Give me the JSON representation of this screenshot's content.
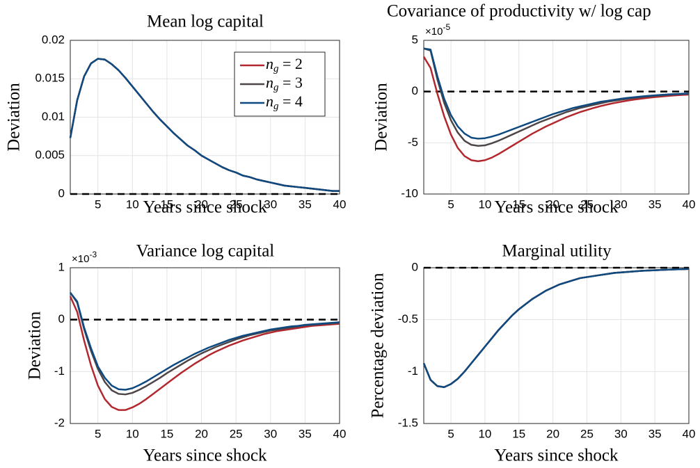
{
  "chart_data": [
    {
      "type": "line",
      "title": "Mean log capital",
      "xlabel": "Years since shock",
      "ylabel": "Deviation",
      "x": [
        1,
        2,
        3,
        4,
        5,
        6,
        7,
        8,
        9,
        10,
        11,
        12,
        13,
        14,
        15,
        16,
        17,
        18,
        19,
        20,
        21,
        22,
        23,
        24,
        25,
        26,
        27,
        28,
        29,
        30,
        31,
        32,
        33,
        34,
        35,
        36,
        37,
        38,
        39,
        40
      ],
      "xlim": [
        1,
        40
      ],
      "xticks": [
        5,
        10,
        15,
        20,
        25,
        30,
        35,
        40
      ],
      "ylim": [
        0,
        0.02
      ],
      "yticks": [
        0,
        0.005,
        0.01,
        0.015,
        0.02
      ],
      "grid": true,
      "reference_line": 0,
      "legend": "northeast",
      "series": [
        {
          "name": "n_g = 2",
          "color": "#b2282e",
          "values": [
            0.0073,
            0.0122,
            0.0153,
            0.017,
            0.0176,
            0.0175,
            0.0169,
            0.0161,
            0.0151,
            0.014,
            0.0129,
            0.0118,
            0.0107,
            0.0097,
            0.0088,
            0.0079,
            0.0071,
            0.0063,
            0.0057,
            0.005,
            0.0045,
            0.004,
            0.0035,
            0.0031,
            0.0028,
            0.0024,
            0.0022,
            0.0019,
            0.0017,
            0.0015,
            0.0013,
            0.0011,
            0.001,
            0.0009,
            0.0008,
            0.0007,
            0.0006,
            0.0005,
            0.0004,
            0.0004
          ]
        },
        {
          "name": "n_g = 3",
          "color": "#4d4548",
          "values": [
            0.0073,
            0.0122,
            0.0153,
            0.017,
            0.0176,
            0.0175,
            0.0169,
            0.0161,
            0.0151,
            0.014,
            0.0129,
            0.0118,
            0.0107,
            0.0097,
            0.0088,
            0.0079,
            0.0071,
            0.0063,
            0.0057,
            0.005,
            0.0045,
            0.004,
            0.0035,
            0.0031,
            0.0028,
            0.0024,
            0.0022,
            0.0019,
            0.0017,
            0.0015,
            0.0013,
            0.0011,
            0.001,
            0.0009,
            0.0008,
            0.0007,
            0.0006,
            0.0005,
            0.0004,
            0.0004
          ]
        },
        {
          "name": "n_g = 4",
          "color": "#0e4a80",
          "values": [
            0.0073,
            0.0122,
            0.0153,
            0.017,
            0.0176,
            0.0175,
            0.0169,
            0.0161,
            0.0151,
            0.014,
            0.0129,
            0.0118,
            0.0107,
            0.0097,
            0.0088,
            0.0079,
            0.0071,
            0.0063,
            0.0057,
            0.005,
            0.0045,
            0.004,
            0.0035,
            0.0031,
            0.0028,
            0.0024,
            0.0022,
            0.0019,
            0.0017,
            0.0015,
            0.0013,
            0.0011,
            0.001,
            0.0009,
            0.0008,
            0.0007,
            0.0006,
            0.0005,
            0.0004,
            0.0004
          ]
        }
      ]
    },
    {
      "type": "line",
      "title": "Covariance of productivity w/ log cap",
      "xlabel": "Years since shock",
      "ylabel": "Deviation",
      "y_multiplier": {
        "base": "×10",
        "exponent": "-5"
      },
      "x": [
        1,
        2,
        3,
        4,
        5,
        6,
        7,
        8,
        9,
        10,
        11,
        12,
        13,
        14,
        15,
        16,
        17,
        18,
        19,
        20,
        21,
        22,
        23,
        24,
        25,
        26,
        27,
        28,
        29,
        30,
        31,
        32,
        33,
        34,
        35,
        36,
        37,
        38,
        39,
        40
      ],
      "xlim": [
        1,
        40
      ],
      "xticks": [
        5,
        10,
        15,
        20,
        25,
        30,
        35,
        40
      ],
      "ylim": [
        -10,
        5
      ],
      "yticks": [
        -10,
        -5,
        0,
        5
      ],
      "grid": true,
      "reference_line": 0,
      "series": [
        {
          "color": "#b2282e",
          "values": [
            3.4,
            2.3,
            -0.2,
            -2.4,
            -4.2,
            -5.5,
            -6.3,
            -6.7,
            -6.8,
            -6.7,
            -6.45,
            -6.1,
            -5.7,
            -5.3,
            -4.9,
            -4.5,
            -4.1,
            -3.75,
            -3.4,
            -3.1,
            -2.8,
            -2.5,
            -2.25,
            -2.0,
            -1.8,
            -1.6,
            -1.42,
            -1.26,
            -1.12,
            -1.0,
            -0.88,
            -0.78,
            -0.69,
            -0.61,
            -0.54,
            -0.48,
            -0.42,
            -0.37,
            -0.33,
            -0.29
          ]
        },
        {
          "color": "#4d4548",
          "values": [
            4.2,
            4.0,
            1.2,
            -1.1,
            -2.8,
            -4.0,
            -4.8,
            -5.2,
            -5.3,
            -5.25,
            -5.05,
            -4.8,
            -4.5,
            -4.2,
            -3.9,
            -3.6,
            -3.3,
            -3.0,
            -2.75,
            -2.5,
            -2.25,
            -2.0,
            -1.8,
            -1.6,
            -1.45,
            -1.3,
            -1.15,
            -1.0,
            -0.9,
            -0.8,
            -0.7,
            -0.62,
            -0.55,
            -0.48,
            -0.42,
            -0.37,
            -0.32,
            -0.28,
            -0.24,
            -0.21
          ]
        },
        {
          "color": "#0e4a80",
          "values": [
            4.2,
            4.1,
            1.5,
            -0.7,
            -2.3,
            -3.4,
            -4.1,
            -4.5,
            -4.6,
            -4.55,
            -4.4,
            -4.2,
            -3.95,
            -3.7,
            -3.45,
            -3.2,
            -2.95,
            -2.7,
            -2.45,
            -2.2,
            -2.0,
            -1.8,
            -1.6,
            -1.45,
            -1.3,
            -1.15,
            -1.0,
            -0.9,
            -0.8,
            -0.7,
            -0.62,
            -0.55,
            -0.48,
            -0.42,
            -0.37,
            -0.32,
            -0.28,
            -0.24,
            -0.21,
            -0.18
          ]
        }
      ]
    },
    {
      "type": "line",
      "title": "Variance log capital",
      "xlabel": "Years since shock",
      "ylabel": "Deviation",
      "y_multiplier": {
        "base": "×10",
        "exponent": "-3"
      },
      "x": [
        1,
        2,
        3,
        4,
        5,
        6,
        7,
        8,
        9,
        10,
        11,
        12,
        13,
        14,
        15,
        16,
        17,
        18,
        19,
        20,
        21,
        22,
        23,
        24,
        25,
        26,
        27,
        28,
        29,
        30,
        31,
        32,
        33,
        34,
        35,
        36,
        37,
        38,
        39,
        40
      ],
      "xlim": [
        1,
        40
      ],
      "xticks": [
        5,
        10,
        15,
        20,
        25,
        30,
        35,
        40
      ],
      "ylim": [
        -2,
        1
      ],
      "yticks": [
        -2,
        -1,
        0,
        1
      ],
      "grid": true,
      "reference_line": 0,
      "series": [
        {
          "color": "#b2282e",
          "values": [
            0.45,
            0.15,
            -0.4,
            -0.88,
            -1.27,
            -1.53,
            -1.68,
            -1.74,
            -1.74,
            -1.69,
            -1.62,
            -1.53,
            -1.43,
            -1.33,
            -1.23,
            -1.13,
            -1.03,
            -0.94,
            -0.85,
            -0.77,
            -0.69,
            -0.62,
            -0.56,
            -0.5,
            -0.45,
            -0.4,
            -0.36,
            -0.32,
            -0.28,
            -0.25,
            -0.22,
            -0.2,
            -0.18,
            -0.16,
            -0.14,
            -0.12,
            -0.11,
            -0.1,
            -0.09,
            -0.08
          ]
        },
        {
          "color": "#4d4548",
          "values": [
            0.52,
            0.33,
            -0.18,
            -0.6,
            -0.95,
            -1.2,
            -1.36,
            -1.43,
            -1.44,
            -1.41,
            -1.35,
            -1.28,
            -1.2,
            -1.12,
            -1.03,
            -0.95,
            -0.87,
            -0.79,
            -0.72,
            -0.65,
            -0.59,
            -0.53,
            -0.48,
            -0.43,
            -0.38,
            -0.34,
            -0.3,
            -0.27,
            -0.24,
            -0.21,
            -0.19,
            -0.17,
            -0.15,
            -0.13,
            -0.11,
            -0.1,
            -0.09,
            -0.08,
            -0.07,
            -0.06
          ]
        },
        {
          "color": "#0e4a80",
          "values": [
            0.52,
            0.35,
            -0.15,
            -0.55,
            -0.9,
            -1.12,
            -1.27,
            -1.34,
            -1.35,
            -1.32,
            -1.26,
            -1.19,
            -1.11,
            -1.03,
            -0.95,
            -0.87,
            -0.8,
            -0.73,
            -0.66,
            -0.6,
            -0.54,
            -0.49,
            -0.44,
            -0.39,
            -0.35,
            -0.31,
            -0.28,
            -0.25,
            -0.22,
            -0.19,
            -0.17,
            -0.15,
            -0.13,
            -0.12,
            -0.1,
            -0.09,
            -0.08,
            -0.07,
            -0.06,
            -0.05
          ]
        }
      ]
    },
    {
      "type": "line",
      "title": "Marginal utility",
      "xlabel": "Years since shock",
      "ylabel": "Percentage deviation",
      "x": [
        1,
        2,
        3,
        4,
        5,
        6,
        7,
        8,
        9,
        10,
        11,
        12,
        13,
        14,
        15,
        16,
        17,
        18,
        19,
        20,
        21,
        22,
        23,
        24,
        25,
        26,
        27,
        28,
        29,
        30,
        31,
        32,
        33,
        34,
        35,
        36,
        37,
        38,
        39,
        40
      ],
      "xlim": [
        1,
        40
      ],
      "xticks": [
        5,
        10,
        15,
        20,
        25,
        30,
        35,
        40
      ],
      "ylim": [
        -1.5,
        0
      ],
      "yticks": [
        -1.5,
        -1,
        -0.5,
        0
      ],
      "grid": true,
      "reference_line": 0,
      "series": [
        {
          "color": "#b2282e",
          "values": [
            -0.92,
            -1.08,
            -1.14,
            -1.15,
            -1.12,
            -1.07,
            -1.0,
            -0.92,
            -0.84,
            -0.76,
            -0.68,
            -0.6,
            -0.53,
            -0.46,
            -0.4,
            -0.35,
            -0.3,
            -0.26,
            -0.22,
            -0.19,
            -0.16,
            -0.14,
            -0.12,
            -0.1,
            -0.09,
            -0.08,
            -0.07,
            -0.06,
            -0.05,
            -0.045,
            -0.04,
            -0.035,
            -0.03,
            -0.027,
            -0.024,
            -0.021,
            -0.018,
            -0.016,
            -0.014,
            -0.012
          ]
        },
        {
          "color": "#4d4548",
          "values": [
            -0.92,
            -1.08,
            -1.14,
            -1.15,
            -1.12,
            -1.07,
            -1.0,
            -0.92,
            -0.84,
            -0.76,
            -0.68,
            -0.6,
            -0.53,
            -0.46,
            -0.4,
            -0.35,
            -0.3,
            -0.26,
            -0.22,
            -0.19,
            -0.16,
            -0.14,
            -0.12,
            -0.1,
            -0.09,
            -0.08,
            -0.07,
            -0.06,
            -0.05,
            -0.045,
            -0.04,
            -0.035,
            -0.03,
            -0.027,
            -0.024,
            -0.021,
            -0.018,
            -0.016,
            -0.014,
            -0.012
          ]
        },
        {
          "color": "#0e4a80",
          "values": [
            -0.92,
            -1.08,
            -1.14,
            -1.15,
            -1.12,
            -1.07,
            -1.0,
            -0.92,
            -0.84,
            -0.76,
            -0.68,
            -0.6,
            -0.53,
            -0.46,
            -0.4,
            -0.35,
            -0.3,
            -0.26,
            -0.22,
            -0.19,
            -0.16,
            -0.14,
            -0.12,
            -0.1,
            -0.09,
            -0.08,
            -0.07,
            -0.06,
            -0.05,
            -0.045,
            -0.04,
            -0.035,
            -0.03,
            -0.027,
            -0.024,
            -0.021,
            -0.018,
            -0.016,
            -0.014,
            -0.012
          ]
        }
      ]
    }
  ]
}
